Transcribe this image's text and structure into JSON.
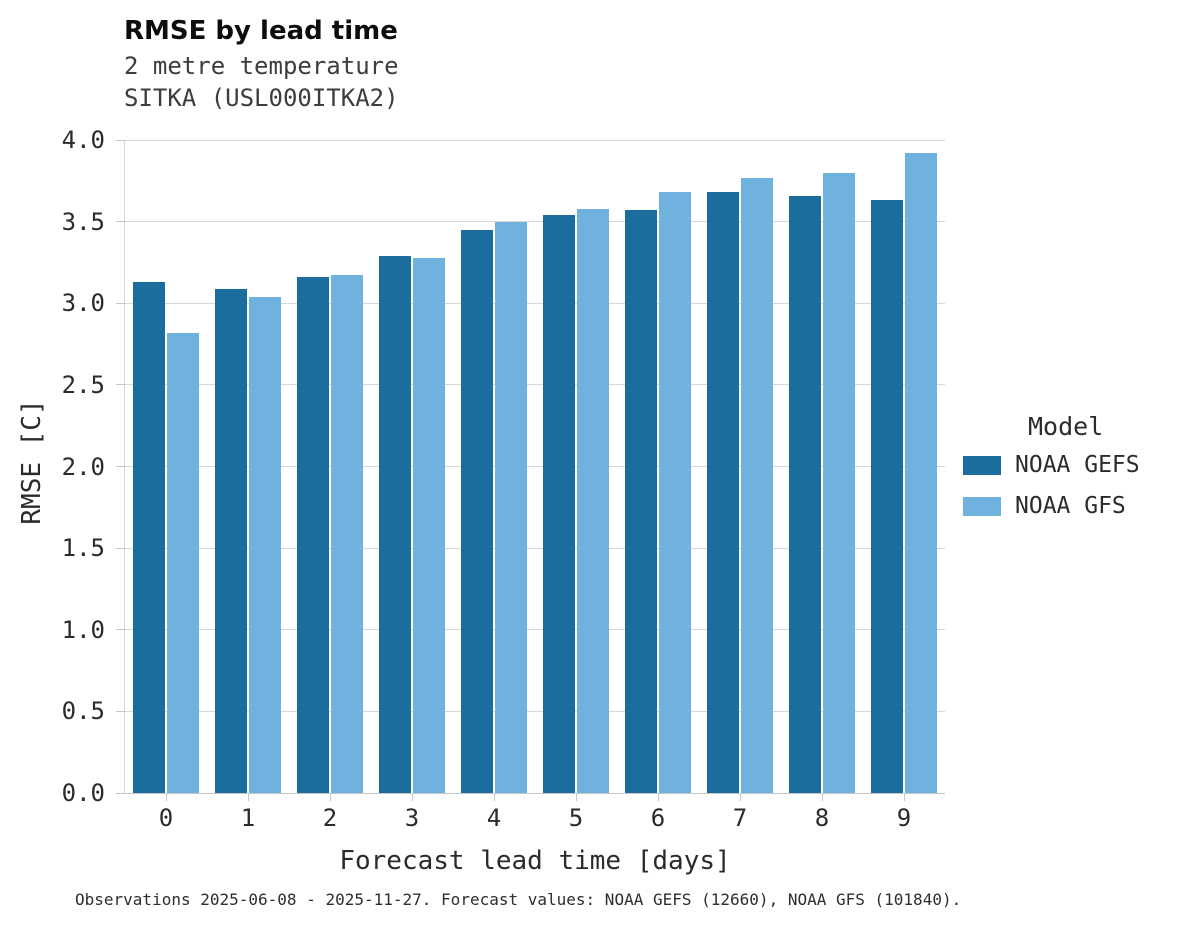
{
  "title": "RMSE by lead time",
  "subtitle_line1": "2 metre temperature",
  "subtitle_line2": "SITKA (USL000ITKA2)",
  "footer": "Observations 2025-06-08 - 2025-11-27. Forecast values: NOAA GEFS (12660), NOAA GFS (101840).",
  "legend": {
    "title": "Model",
    "entries": [
      {
        "label": "NOAA GEFS",
        "color": "#1b6d9d"
      },
      {
        "label": "NOAA GFS",
        "color": "#6eb2dd"
      }
    ]
  },
  "chart_data": {
    "type": "bar",
    "title": "RMSE by lead time",
    "subtitle": [
      "2 metre temperature",
      "SITKA (USL000ITKA2)"
    ],
    "categories": [
      "0",
      "1",
      "2",
      "3",
      "4",
      "5",
      "6",
      "7",
      "8",
      "9"
    ],
    "series": [
      {
        "name": "NOAA GEFS",
        "color": "#1b6d9d",
        "values": [
          3.13,
          3.09,
          3.16,
          3.29,
          3.45,
          3.54,
          3.57,
          3.68,
          3.66,
          3.63
        ]
      },
      {
        "name": "NOAA GFS",
        "color": "#6eb2dd",
        "values": [
          2.82,
          3.04,
          3.17,
          3.28,
          3.5,
          3.58,
          3.68,
          3.77,
          3.8,
          3.92
        ]
      }
    ],
    "xlabel": "Forecast lead time [days]",
    "ylabel": "RMSE [C]",
    "ylim": [
      0,
      4
    ],
    "ytick_step": 0.5,
    "grid": true,
    "legend_title": "Model",
    "legend_position": "right"
  }
}
